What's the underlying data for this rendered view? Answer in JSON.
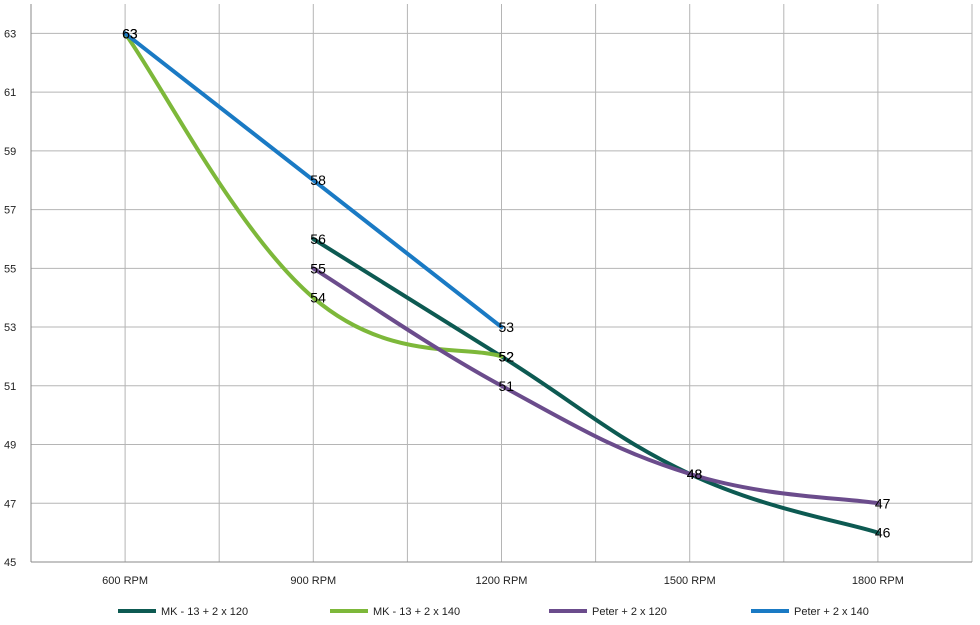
{
  "chart_data": {
    "type": "line",
    "categories": [
      "600 RPM",
      "900 RPM",
      "1200 RPM",
      "1500 RPM",
      "1800 RPM"
    ],
    "ylim": [
      45,
      64
    ],
    "yticks": [
      45,
      47,
      49,
      51,
      53,
      55,
      57,
      59,
      61,
      63
    ],
    "grid": true,
    "legend_position": "bottom",
    "series": [
      {
        "name": "MK - 13 + 2 x 120",
        "color": "#0d5a52",
        "values": [
          null,
          56,
          52,
          48,
          46
        ]
      },
      {
        "name": "MK - 13 + 2 x 140",
        "color": "#7db83a",
        "values": [
          63,
          54,
          52,
          null,
          null
        ]
      },
      {
        "name": "Peter + 2 x 120",
        "color": "#6b4c8c",
        "values": [
          null,
          55,
          51,
          48,
          47
        ]
      },
      {
        "name": "Peter + 2 x 140",
        "color": "#1a7ac4",
        "values": [
          63,
          58,
          53,
          null,
          null
        ]
      }
    ]
  }
}
